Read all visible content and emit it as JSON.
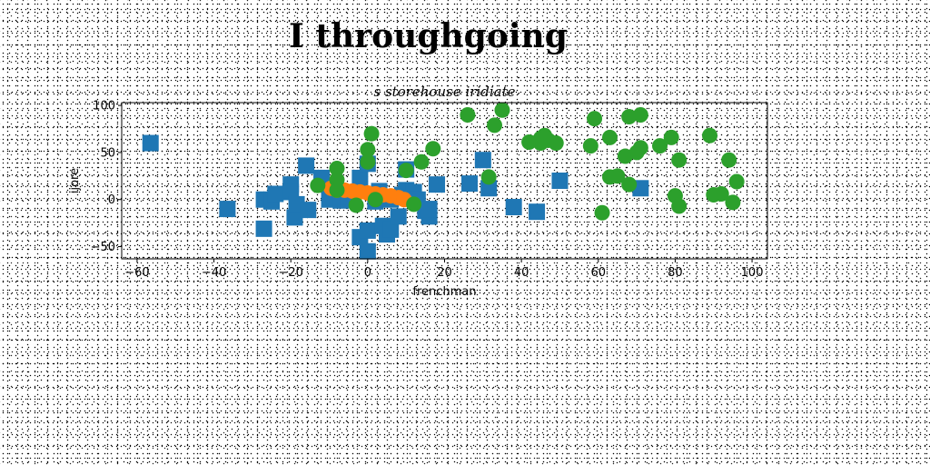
{
  "title": "I throughgoing",
  "chart_data": {
    "type": "scatter",
    "subtitle": "s storehouse iridiate",
    "xlabel": "frenchman",
    "ylabel": "ijore",
    "xlim": [
      -64,
      104
    ],
    "ylim": [
      -63,
      103
    ],
    "xticks": [
      -60,
      -40,
      -20,
      0,
      20,
      40,
      60,
      80,
      100
    ],
    "yticks": [
      -50,
      0,
      50,
      100
    ],
    "grid": false,
    "legend": "none",
    "series": [
      {
        "marker": "square",
        "color": "#1f77b4",
        "points": [
          [
            -56.5,
            60
          ],
          [
            -36.5,
            -10
          ],
          [
            -27,
            -31
          ],
          [
            -27,
            0
          ],
          [
            -25,
            -2
          ],
          [
            -24,
            6
          ],
          [
            -20,
            16
          ],
          [
            -20,
            8
          ],
          [
            -19,
            -19
          ],
          [
            -18.5,
            -5
          ],
          [
            -16,
            36
          ],
          [
            -15.5,
            -11
          ],
          [
            -12,
            23
          ],
          [
            -10,
            2
          ],
          [
            -10,
            0
          ],
          [
            -8,
            2
          ],
          [
            -7,
            -1
          ],
          [
            -5,
            0
          ],
          [
            -2,
            23
          ],
          [
            -2,
            -40
          ],
          [
            0,
            -33
          ],
          [
            0,
            38
          ],
          [
            0,
            -55
          ],
          [
            2,
            -2
          ],
          [
            3,
            9
          ],
          [
            4,
            -28
          ],
          [
            5,
            -37
          ],
          [
            6,
            0
          ],
          [
            6,
            -32
          ],
          [
            8,
            -18
          ],
          [
            9,
            5
          ],
          [
            10,
            32
          ],
          [
            10,
            10
          ],
          [
            12,
            8
          ],
          [
            13,
            0
          ],
          [
            15,
            -12
          ],
          [
            16,
            -18
          ],
          [
            16,
            -10
          ],
          [
            18,
            16
          ],
          [
            26.5,
            17
          ],
          [
            30,
            42
          ],
          [
            31.5,
            12
          ],
          [
            38,
            -8
          ],
          [
            44,
            -13
          ],
          [
            50,
            20
          ],
          [
            71,
            12
          ]
        ]
      },
      {
        "marker": "circle",
        "color": "#ff7f0e",
        "points": [
          [
            -9.5,
            12
          ],
          [
            -8,
            10
          ],
          [
            -6,
            10
          ],
          [
            -4,
            9
          ],
          [
            -2,
            8
          ],
          [
            0,
            7
          ],
          [
            2,
            6
          ],
          [
            4,
            5
          ],
          [
            6,
            4
          ],
          [
            8,
            2
          ],
          [
            9.5,
            0
          ]
        ]
      },
      {
        "marker": "circle",
        "color": "#2ca02c",
        "points": [
          [
            1,
            70
          ],
          [
            0,
            53
          ],
          [
            0,
            40
          ],
          [
            -8,
            33
          ],
          [
            -13,
            15
          ],
          [
            -8,
            21
          ],
          [
            -8,
            10
          ],
          [
            -3,
            -6
          ],
          [
            2,
            0
          ],
          [
            10,
            31
          ],
          [
            12,
            -5
          ],
          [
            14,
            40
          ],
          [
            17,
            54
          ],
          [
            26,
            90
          ],
          [
            31.5,
            24
          ],
          [
            33,
            79
          ],
          [
            35,
            95
          ],
          [
            42,
            61
          ],
          [
            45,
            60
          ],
          [
            45,
            65
          ],
          [
            46,
            68
          ],
          [
            47,
            63
          ],
          [
            49,
            60
          ],
          [
            58,
            57
          ],
          [
            59,
            86
          ],
          [
            61,
            -14
          ],
          [
            63,
            24
          ],
          [
            63,
            66
          ],
          [
            65,
            25
          ],
          [
            67,
            46
          ],
          [
            68,
            88
          ],
          [
            68,
            16
          ],
          [
            70,
            50
          ],
          [
            71,
            55
          ],
          [
            71,
            90
          ],
          [
            76,
            57
          ],
          [
            79,
            66
          ],
          [
            80,
            4
          ],
          [
            81,
            42
          ],
          [
            81,
            -7
          ],
          [
            89,
            68
          ],
          [
            90,
            5
          ],
          [
            92,
            6
          ],
          [
            94,
            42
          ],
          [
            95,
            -3
          ],
          [
            96,
            19
          ]
        ]
      }
    ]
  }
}
